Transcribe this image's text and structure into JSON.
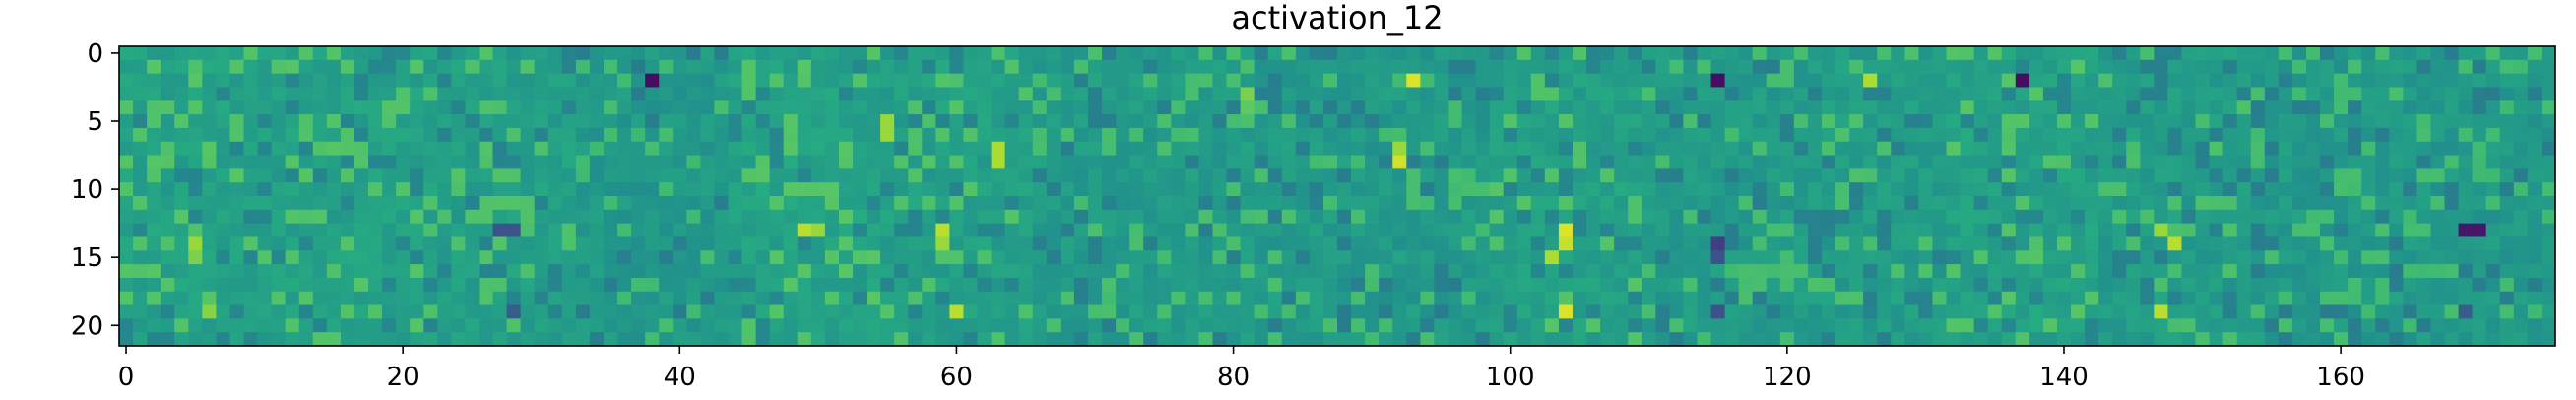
{
  "chart_data": {
    "type": "heatmap",
    "title": "activation_12",
    "xlabel": "",
    "ylabel": "",
    "rows": 22,
    "cols": 176,
    "xlim": [
      -0.5,
      175.5
    ],
    "ylim": [
      21.5,
      -0.5
    ],
    "x_ticks": [
      0,
      20,
      40,
      60,
      80,
      100,
      120,
      140,
      160
    ],
    "y_ticks": [
      0,
      5,
      10,
      15,
      20
    ],
    "x_tick_labels": [
      "0",
      "20",
      "40",
      "60",
      "80",
      "100",
      "120",
      "140",
      "160"
    ],
    "y_tick_labels": [
      "0",
      "5",
      "10",
      "15",
      "20"
    ],
    "colormap": "viridis",
    "value_range": [
      0,
      1
    ],
    "background_value": 0.56,
    "colorbar": false,
    "grid": false,
    "hot_cells": [
      {
        "r": 2,
        "c": 38,
        "v": 0.05
      },
      {
        "r": 2,
        "c": 93,
        "v": 0.95
      },
      {
        "r": 2,
        "c": 115,
        "v": 0.05
      },
      {
        "r": 2,
        "c": 126,
        "v": 0.88
      },
      {
        "r": 2,
        "c": 137,
        "v": 0.05
      },
      {
        "r": 8,
        "c": 92,
        "v": 0.93
      },
      {
        "r": 7,
        "c": 92,
        "v": 0.85
      },
      {
        "r": 13,
        "c": 49,
        "v": 0.9
      },
      {
        "r": 13,
        "c": 50,
        "v": 0.85
      },
      {
        "r": 13,
        "c": 27,
        "v": 0.25
      },
      {
        "r": 13,
        "c": 28,
        "v": 0.25
      },
      {
        "r": 13,
        "c": 104,
        "v": 0.95
      },
      {
        "r": 14,
        "c": 104,
        "v": 0.92
      },
      {
        "r": 15,
        "c": 103,
        "v": 0.88
      },
      {
        "r": 13,
        "c": 59,
        "v": 0.9
      },
      {
        "r": 14,
        "c": 59,
        "v": 0.85
      },
      {
        "r": 14,
        "c": 115,
        "v": 0.2
      },
      {
        "r": 15,
        "c": 115,
        "v": 0.25
      },
      {
        "r": 14,
        "c": 148,
        "v": 0.9
      },
      {
        "r": 13,
        "c": 147,
        "v": 0.85
      },
      {
        "r": 13,
        "c": 169,
        "v": 0.08
      },
      {
        "r": 13,
        "c": 170,
        "v": 0.08
      },
      {
        "r": 14,
        "c": 5,
        "v": 0.85
      },
      {
        "r": 15,
        "c": 5,
        "v": 0.8
      },
      {
        "r": 19,
        "c": 60,
        "v": 0.9
      },
      {
        "r": 19,
        "c": 104,
        "v": 0.95
      },
      {
        "r": 19,
        "c": 115,
        "v": 0.25
      },
      {
        "r": 19,
        "c": 28,
        "v": 0.3
      },
      {
        "r": 19,
        "c": 147,
        "v": 0.9
      },
      {
        "r": 19,
        "c": 169,
        "v": 0.3
      },
      {
        "r": 19,
        "c": 6,
        "v": 0.82
      },
      {
        "r": 5,
        "c": 55,
        "v": 0.85
      },
      {
        "r": 6,
        "c": 55,
        "v": 0.85
      },
      {
        "r": 7,
        "c": 63,
        "v": 0.88
      },
      {
        "r": 8,
        "c": 63,
        "v": 0.88
      },
      {
        "r": 3,
        "c": 81,
        "v": 0.8
      },
      {
        "r": 4,
        "c": 81,
        "v": 0.75
      }
    ]
  }
}
